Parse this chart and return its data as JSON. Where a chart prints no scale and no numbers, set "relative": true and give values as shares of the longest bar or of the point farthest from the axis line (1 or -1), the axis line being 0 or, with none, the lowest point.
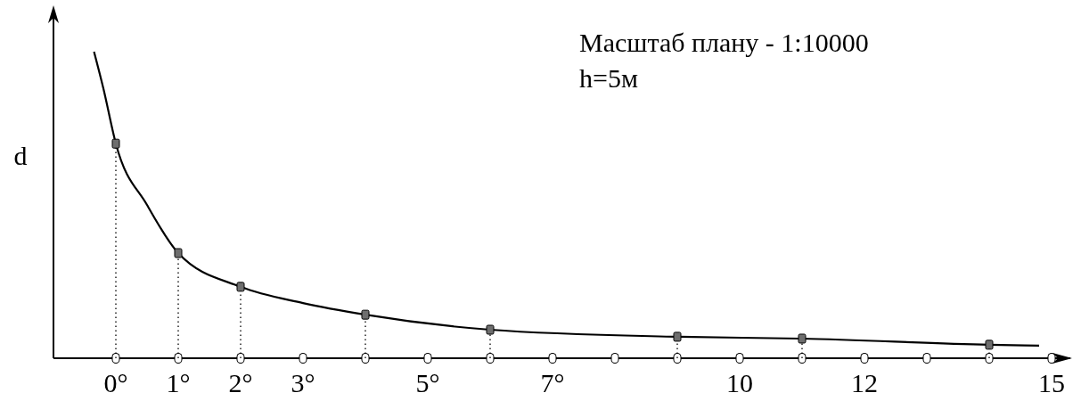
{
  "chart_data": {
    "type": "line",
    "relative": true,
    "ylabel": "d",
    "annotations": [
      "Масштаб плану - 1:10000",
      "h=5м"
    ],
    "xlim": [
      -1,
      15.3
    ],
    "xticks": [
      {
        "value": 0,
        "label": "0°"
      },
      {
        "value": 1,
        "label": "1°"
      },
      {
        "value": 2,
        "label": "2°"
      },
      {
        "value": 3,
        "label": "3°"
      },
      {
        "value": 4,
        "label": null
      },
      {
        "value": 5,
        "label": "5°"
      },
      {
        "value": 6,
        "label": null
      },
      {
        "value": 7,
        "label": "7°"
      },
      {
        "value": 8,
        "label": null
      },
      {
        "value": 9,
        "label": null
      },
      {
        "value": 10,
        "label": "10"
      },
      {
        "value": 11,
        "label": null
      },
      {
        "value": 12,
        "label": "12"
      },
      {
        "value": 13,
        "label": null
      },
      {
        "value": 14,
        "label": null
      },
      {
        "value": 15,
        "label": "15"
      }
    ],
    "series": [
      {
        "color": "#000000",
        "marker": "none",
        "x": [
          -0.35,
          -0.2,
          0,
          0.5,
          1,
          2,
          3,
          4,
          6,
          9,
          11,
          14,
          14.8
        ],
        "values": [
          1,
          0.88,
          0.7,
          0.5,
          0.343,
          0.233,
          0.18,
          0.142,
          0.093,
          0.07,
          0.064,
          0.044,
          0.041
        ]
      },
      {
        "type": "lollipop",
        "color": "#6e6e6e",
        "marker": "square",
        "line_style": "dotted",
        "x": [
          0,
          1,
          2,
          4,
          6,
          9,
          11,
          14
        ],
        "values": [
          0.7,
          0.343,
          0.233,
          0.142,
          0.093,
          0.07,
          0.064,
          0.044
        ]
      }
    ]
  }
}
